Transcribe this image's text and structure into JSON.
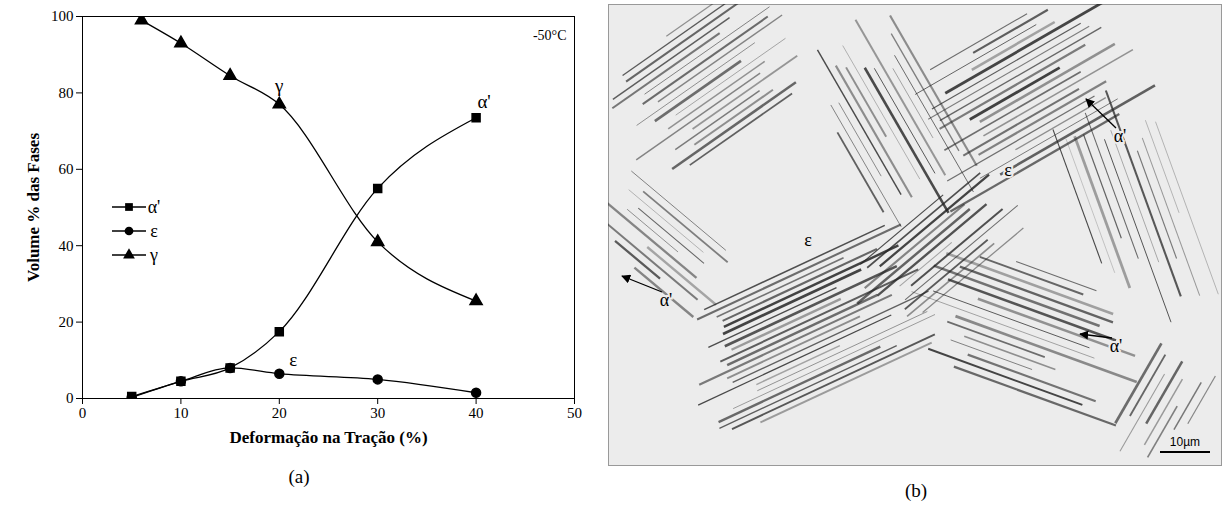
{
  "chart_data": {
    "type": "line",
    "x_label": "Deformação na Tração (%)",
    "y_label": "Volume % das Fases",
    "annotations": [
      "-50°C"
    ],
    "xlim": [
      0,
      50
    ],
    "xticks": [
      0,
      10,
      20,
      30,
      40,
      50
    ],
    "ylim": [
      0,
      100
    ],
    "yticks": [
      0,
      20,
      40,
      60,
      80,
      100
    ],
    "legend": "left",
    "series": [
      {
        "name": "α'",
        "color": "#000000",
        "marker": "square",
        "x": [
          5,
          10,
          15,
          20,
          30,
          40
        ],
        "values": [
          0.5,
          4.5,
          8,
          17.5,
          55,
          73.5
        ]
      },
      {
        "name": "ε",
        "color": "#000000",
        "marker": "circle",
        "x": [
          5,
          10,
          15,
          20,
          30,
          40
        ],
        "values": [
          0.3,
          4.5,
          8,
          6.5,
          5,
          1.5
        ]
      },
      {
        "name": "γ",
        "color": "#000000",
        "marker": "triangle",
        "x": [
          6,
          10,
          15,
          20,
          30,
          40
        ],
        "values": [
          99,
          93,
          84.5,
          77,
          41,
          25.5
        ]
      }
    ]
  },
  "panel_labels": [
    "(a)",
    "(b)"
  ],
  "micrograph": {
    "labels": [
      "ε",
      "ε",
      "α'",
      "α'",
      "α'"
    ],
    "scale_bar": "10µm"
  }
}
